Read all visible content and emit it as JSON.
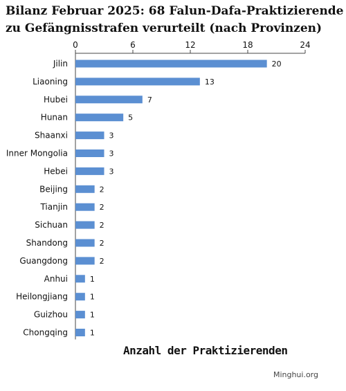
{
  "colors": {
    "bar": "#5b8fd2",
    "axis": "#444444",
    "text": "#111111"
  },
  "source": "Minghui.org",
  "chart_data": {
    "type": "bar",
    "orientation": "horizontal",
    "title_lines": [
      "Bilanz Februar 2025: 68 Falun-Dafa-Praktizierende",
      "zu Gefängnisstrafen verurteilt  (nach Provinzen)"
    ],
    "xlabel": "Anzahl der Praktizierenden",
    "ylabel": "",
    "xlim": [
      0,
      24
    ],
    "xticks": [
      0,
      6,
      12,
      18,
      24
    ],
    "x_axis_position": "top",
    "grid": false,
    "legend": "none",
    "categories": [
      "Jilin",
      "Liaoning",
      "Hubei",
      "Hunan",
      "Shaanxi",
      "Inner Mongolia",
      "Hebei",
      "Beijing",
      "Tianjin",
      "Sichuan",
      "Shandong",
      "Guangdong",
      "Anhui",
      "Heilongjiang",
      "Guizhou",
      "Chongqing"
    ],
    "values": [
      20,
      13,
      7,
      5,
      3,
      3,
      3,
      2,
      2,
      2,
      2,
      2,
      1,
      1,
      1,
      1
    ]
  }
}
